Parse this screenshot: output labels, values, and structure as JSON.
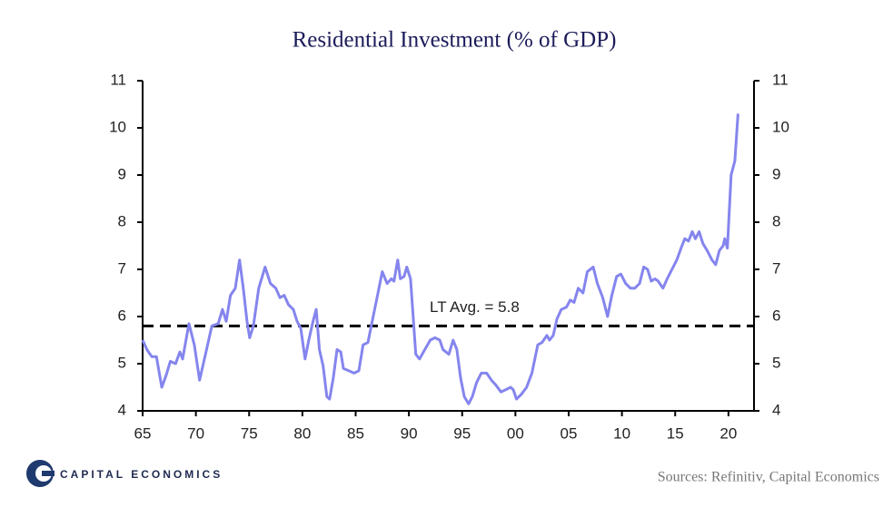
{
  "chart_data": {
    "type": "line",
    "title": "Residential Investment (% of GDP)",
    "x": [
      1965.0,
      1965.4,
      1965.85,
      1966.3,
      1966.8,
      1967.2,
      1967.6,
      1968.1,
      1968.5,
      1968.75,
      1969.35,
      1969.85,
      1970.35,
      1970.9,
      1971.5,
      1972.1,
      1972.5,
      1972.85,
      1973.25,
      1973.7,
      1974.1,
      1974.45,
      1974.8,
      1975.05,
      1975.4,
      1975.9,
      1976.5,
      1977.0,
      1977.5,
      1977.9,
      1978.3,
      1978.7,
      1979.15,
      1979.5,
      1979.85,
      1980.25,
      1980.6,
      1981.0,
      1981.3,
      1981.6,
      1981.95,
      1982.3,
      1982.55,
      1982.9,
      1983.25,
      1983.6,
      1983.85,
      1984.35,
      1984.85,
      1985.3,
      1985.7,
      1986.15,
      1986.65,
      1987.1,
      1987.5,
      1987.95,
      1988.35,
      1988.6,
      1988.95,
      1989.2,
      1989.55,
      1989.8,
      1990.15,
      1990.4,
      1990.65,
      1991.0,
      1991.5,
      1992.0,
      1992.45,
      1992.9,
      1993.2,
      1993.75,
      1994.15,
      1994.5,
      1994.85,
      1995.2,
      1995.6,
      1995.95,
      1996.35,
      1996.8,
      1997.3,
      1997.75,
      1998.15,
      1998.65,
      1999.1,
      1999.55,
      1999.8,
      2000.1,
      2000.55,
      2001.05,
      2001.55,
      2002.1,
      2002.5,
      2002.95,
      2003.2,
      2003.55,
      2003.9,
      2004.3,
      2004.8,
      2005.15,
      2005.5,
      2005.9,
      2006.35,
      2006.75,
      2007.3,
      2007.7,
      2008.2,
      2008.65,
      2009.05,
      2009.5,
      2009.9,
      2010.35,
      2010.8,
      2011.2,
      2011.65,
      2012.05,
      2012.4,
      2012.75,
      2013.1,
      2013.4,
      2013.85,
      2014.25,
      2014.7,
      2015.15,
      2015.55,
      2015.9,
      2016.25,
      2016.6,
      2016.9,
      2017.25,
      2017.6,
      2018.0,
      2018.45,
      2018.8,
      2019.15,
      2019.5,
      2019.65,
      2019.9,
      2020.25,
      2020.6,
      2020.9
    ],
    "values": [
      5.5,
      5.3,
      5.15,
      5.15,
      4.5,
      4.75,
      5.05,
      5.0,
      5.25,
      5.1,
      5.85,
      5.4,
      4.65,
      5.2,
      5.8,
      5.85,
      6.15,
      5.9,
      6.45,
      6.6,
      7.2,
      6.6,
      5.9,
      5.55,
      5.8,
      6.6,
      7.05,
      6.7,
      6.6,
      6.4,
      6.45,
      6.25,
      6.15,
      5.9,
      5.75,
      5.1,
      5.5,
      5.9,
      6.15,
      5.3,
      4.95,
      4.3,
      4.25,
      4.7,
      5.3,
      5.25,
      4.9,
      4.85,
      4.8,
      4.85,
      5.4,
      5.45,
      6.0,
      6.5,
      6.95,
      6.7,
      6.8,
      6.75,
      7.2,
      6.8,
      6.85,
      7.05,
      6.8,
      6.0,
      5.2,
      5.1,
      5.3,
      5.5,
      5.55,
      5.5,
      5.3,
      5.2,
      5.5,
      5.3,
      4.7,
      4.3,
      4.15,
      4.3,
      4.6,
      4.8,
      4.8,
      4.65,
      4.55,
      4.4,
      4.45,
      4.5,
      4.45,
      4.25,
      4.35,
      4.5,
      4.8,
      5.4,
      5.45,
      5.6,
      5.5,
      5.6,
      5.95,
      6.15,
      6.2,
      6.35,
      6.3,
      6.6,
      6.5,
      6.95,
      7.05,
      6.7,
      6.4,
      6.0,
      6.45,
      6.85,
      6.9,
      6.7,
      6.6,
      6.6,
      6.7,
      7.05,
      7.0,
      6.75,
      6.8,
      6.75,
      6.6,
      6.8,
      7.0,
      7.2,
      7.45,
      7.65,
      7.6,
      7.8,
      7.65,
      7.8,
      7.55,
      7.4,
      7.2,
      7.1,
      7.4,
      7.5,
      7.65,
      7.45,
      9.0,
      9.3,
      10.3
    ],
    "color": "#8585ee",
    "xlim": [
      1965,
      2022.4
    ],
    "xticks": [
      {
        "value": 1965,
        "label": "65"
      },
      {
        "value": 1970,
        "label": "70"
      },
      {
        "value": 1975,
        "label": "75"
      },
      {
        "value": 1980,
        "label": "80"
      },
      {
        "value": 1985,
        "label": "85"
      },
      {
        "value": 1990,
        "label": "90"
      },
      {
        "value": 1995,
        "label": "95"
      },
      {
        "value": 2000,
        "label": "00"
      },
      {
        "value": 2005,
        "label": "05"
      },
      {
        "value": 2010,
        "label": "10"
      },
      {
        "value": 2015,
        "label": "15"
      },
      {
        "value": 2020,
        "label": "20"
      }
    ],
    "ylim": [
      4,
      11
    ],
    "yticks": [
      4,
      5,
      6,
      7,
      8,
      9,
      10,
      11
    ],
    "y2lim": [
      4,
      11
    ],
    "y2ticks": [
      4,
      5,
      6,
      7,
      8,
      9,
      10,
      11
    ],
    "hline": {
      "value": 5.8,
      "label": "LT Avg. = 5.8"
    },
    "grid": false
  },
  "footer": {
    "logo": "CAPITAL ECONOMICS",
    "source": "Sources: Refinitiv, Capital Economics"
  }
}
